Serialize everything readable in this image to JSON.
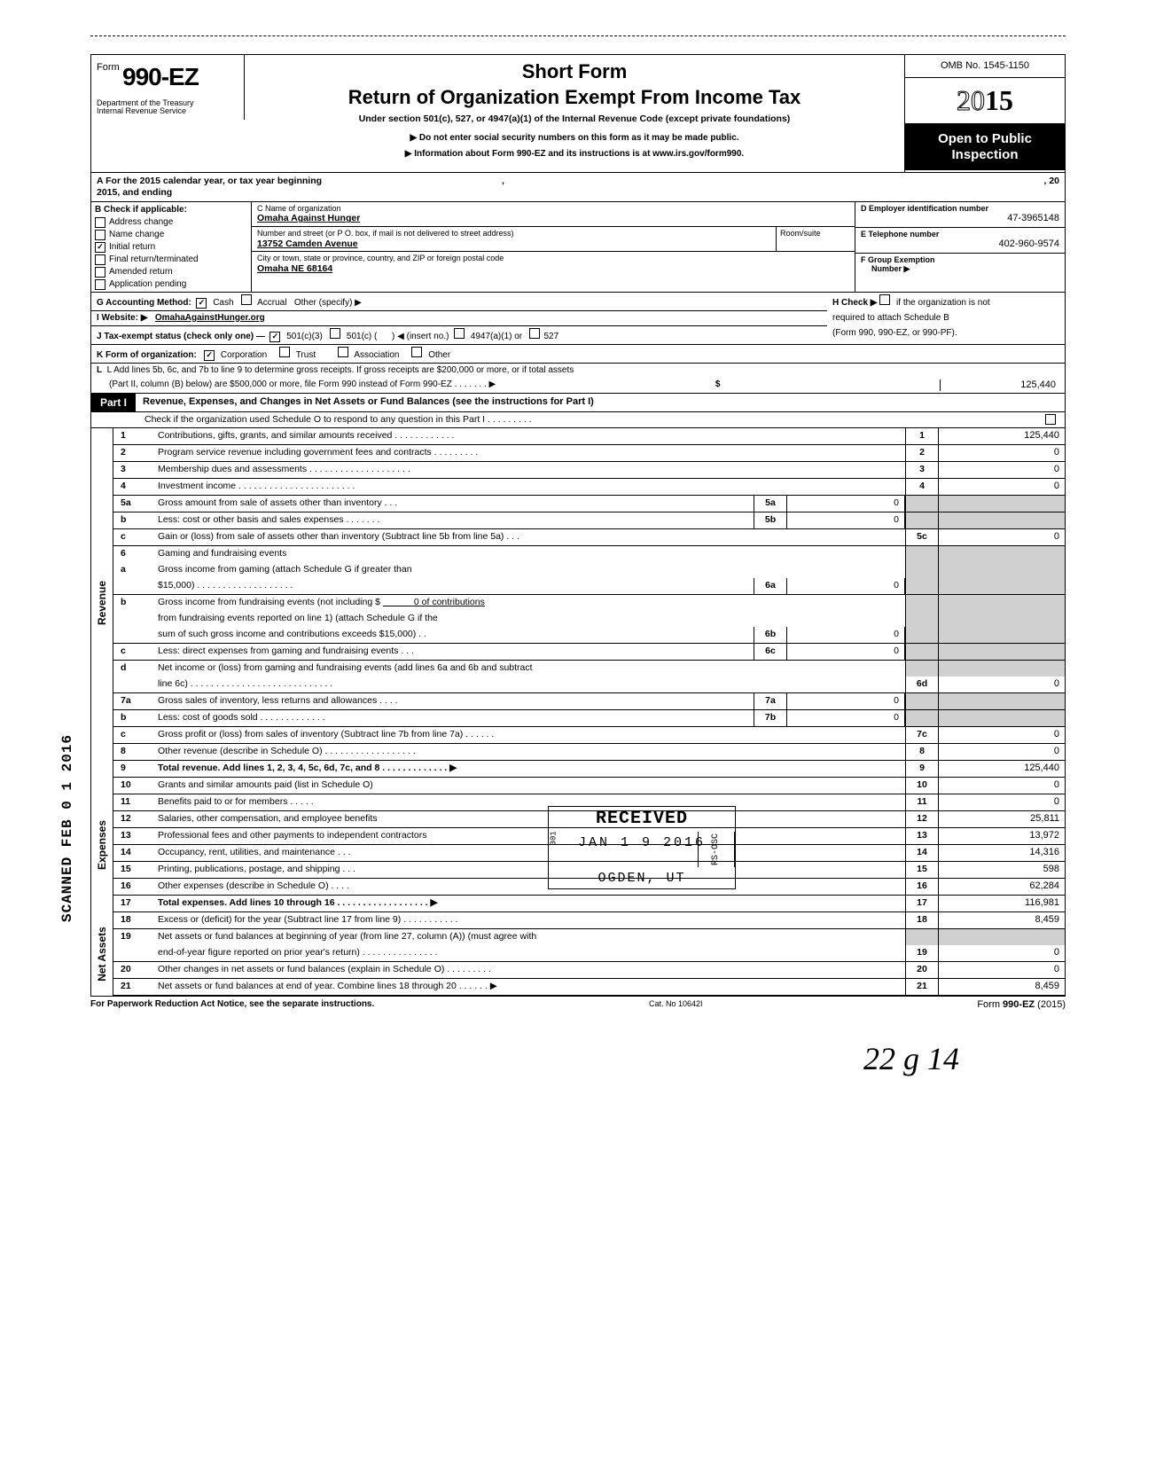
{
  "meta": {
    "form_prefix": "Form",
    "form_number": "990-EZ",
    "omb": "OMB No. 1545-1150",
    "year_outline": "20",
    "year_bold": "15",
    "short_form": "Short Form",
    "title": "Return of Organization Exempt From Income Tax",
    "subtitle": "Under section 501(c), 527, or 4947(a)(1) of the Internal Revenue Code (except private foundations)",
    "notice1": "Do not enter social security numbers on this form as it may be made public.",
    "notice2": "Information about Form 990-EZ and its instructions is at www.irs.gov/form990.",
    "open_public_1": "Open to Public",
    "open_public_2": "Inspection",
    "dept1": "Department of the Treasury",
    "dept2": "Internal Revenue Service",
    "sidebar_stamp": "SCANNED FEB 0 1 2016"
  },
  "row_a": {
    "left": "A  For the 2015 calendar year, or tax year beginning",
    "mid": ", 2015, and ending",
    "right": ", 20"
  },
  "section_b": {
    "heading": "B  Check if applicable:",
    "items": [
      {
        "label": "Address change",
        "checked": false
      },
      {
        "label": "Name change",
        "checked": false
      },
      {
        "label": "Initial return",
        "checked": true
      },
      {
        "label": "Final return/terminated",
        "checked": false
      },
      {
        "label": "Amended return",
        "checked": false
      },
      {
        "label": "Application pending",
        "checked": false
      }
    ]
  },
  "section_c": {
    "name_label": "C  Name of organization",
    "name_value": "Omaha Against Hunger",
    "street_label": "Number and street (or P O. box, if mail is not delivered to street address)",
    "room_label": "Room/suite",
    "street_value": "13752 Camden Avenue",
    "city_label": "City or town, state or province, country, and ZIP or foreign postal code",
    "city_value": "Omaha  NE    68164"
  },
  "section_d": {
    "ein_label": "D Employer identification number",
    "ein_value": "47-3965148",
    "tel_label": "E Telephone number",
    "tel_value": "402-960-9574",
    "group_label": "F Group Exemption",
    "group_label2": "Number ▶"
  },
  "line_g": {
    "label": "G  Accounting Method:",
    "cash": "Cash",
    "cash_checked": true,
    "accrual": "Accrual",
    "other": "Other (specify) ▶"
  },
  "line_h": {
    "text1": "H  Check ▶",
    "text2": "if the organization is not",
    "text3": "required to attach Schedule B",
    "text4": "(Form 990, 990-EZ, or 990-PF)."
  },
  "line_i": {
    "label": "I   Website: ▶",
    "value": "OmahaAgainstHunger.org"
  },
  "line_j": {
    "label": "J  Tax-exempt status (check only one) —",
    "c3": "501(c)(3)",
    "c3_checked": true,
    "c": "501(c) (",
    "insert": ") ◀ (insert no.)",
    "a4947": "4947(a)(1) or",
    "s527": "527"
  },
  "line_k": {
    "label": "K  Form of organization:",
    "corp": "Corporation",
    "corp_checked": true,
    "trust": "Trust",
    "assoc": "Association",
    "other": "Other"
  },
  "line_l": {
    "text1": "L  Add lines 5b, 6c, and 7b to line 9 to determine gross receipts. If gross receipts are $200,000 or more, or if total assets",
    "text2": "(Part II, column (B) below) are $500,000 or more, file Form 990 instead of Form 990-EZ  .    .    .    .    .    .    .    ▶",
    "dollar": "$",
    "value": "125,440"
  },
  "part1": {
    "badge": "Part I",
    "title": "Revenue, Expenses, and Changes in Net Assets or Fund Balances (see the instructions for Part I)",
    "check_line": "Check if the organization used Schedule O to respond to any question in this Part I  .    .    .    .    .    .    .    .    ."
  },
  "sections": {
    "revenue_label": "Revenue",
    "expenses_label": "Expenses",
    "netassets_label": "Net Assets"
  },
  "revenue_lines": [
    {
      "n": "1",
      "d": "Contributions, gifts, grants, and similar amounts received .   .   .   .   .   .   .   .   .   .   .   .",
      "rn": "1",
      "rv": "125,440"
    },
    {
      "n": "2",
      "d": "Program service revenue including government fees and contracts   .   .   .   .   .   .   .   .   .",
      "rn": "2",
      "rv": "0"
    },
    {
      "n": "3",
      "d": "Membership dues and assessments .   .   .   .   .   .   .   .   .   .   .   .   .   .   .   .   .   .   .   .",
      "rn": "3",
      "rv": "0"
    },
    {
      "n": "4",
      "d": "Investment income    .   .   .   .   .   .   .   .   .   .   .   .   .   .   .   .   .   .   .   .   .   .   .",
      "rn": "4",
      "rv": "0"
    }
  ],
  "line5": {
    "a_n": "5a",
    "a_d": "Gross amount from sale of assets other than inventory    .   .   .",
    "a_mb": "5a",
    "a_mv": "0",
    "b_n": "b",
    "b_d": "Less: cost or other basis and sales expenses .   .   .   .   .   .   .",
    "b_mb": "5b",
    "b_mv": "0",
    "c_n": "c",
    "c_d": "Gain or (loss) from sale of assets other than inventory (Subtract line 5b from line 5a)  .   .   .",
    "c_rn": "5c",
    "c_rv": "0"
  },
  "line6": {
    "h_n": "6",
    "h_d": "Gaming and fundraising events",
    "a_n": "a",
    "a_d1": "Gross income from gaming (attach Schedule G if greater than",
    "a_d2": "$15,000) .   .   .   .   .   .   .   .   .   .   .   .   .   .   .   .   .   .   .",
    "a_mb": "6a",
    "a_mv": "0",
    "b_n": "b",
    "b_d1": "Gross income from fundraising events (not including  $",
    "b_d1_tail": "0 of contributions",
    "b_d2": "from fundraising events reported on line 1) (attach Schedule G if the",
    "b_d3": "sum of such gross income and contributions exceeds $15,000)  .   .",
    "b_mb": "6b",
    "b_mv": "0",
    "c_n": "c",
    "c_d": "Less: direct expenses from gaming and fundraising events    .   .   .",
    "c_mb": "6c",
    "c_mv": "0",
    "d_n": "d",
    "d_d1": "Net income or (loss) from gaming and fundraising events (add lines 6a and 6b and subtract",
    "d_d2": "line 6c)    .   .   .   .   .   .   .   .   .   .   .   .   .   .   .   .   .   .   .   .   .   .   .   .   .   .   .   .",
    "d_rn": "6d",
    "d_rv": "0"
  },
  "line7": {
    "a_n": "7a",
    "a_d": "Gross sales of inventory, less returns and allowances  .   .   .   .",
    "a_mb": "7a",
    "a_mv": "0",
    "b_n": "b",
    "b_d": "Less: cost of goods sold     .   .   .   .   .   .   .   .   .   .   .   .   .",
    "b_mb": "7b",
    "b_mv": "0",
    "c_n": "c",
    "c_d": "Gross profit or (loss) from sales of inventory (Subtract line 7b from line 7a)   .   .   .   .   .   .",
    "c_rn": "7c",
    "c_rv": "0"
  },
  "line8": {
    "n": "8",
    "d": "Other revenue (describe in Schedule O) .   .   .   .   .   .   .   .   .   .   .   .   .   .   .   .   .   .",
    "rn": "8",
    "rv": "0"
  },
  "line9": {
    "n": "9",
    "d": "Total revenue. Add lines 1, 2, 3, 4, 5c, 6d, 7c, and 8    .   .   .   .   .   .   .   .   .   .   .   .   . ▶",
    "rn": "9",
    "rv": "125,440",
    "bold": true
  },
  "expenses_lines": [
    {
      "n": "10",
      "d": "Grants and similar amounts paid (list in Schedule O)",
      "rn": "10",
      "rv": "0"
    },
    {
      "n": "11",
      "d": "Benefits paid to or for members   .   .   .   .   .",
      "rn": "11",
      "rv": "0"
    },
    {
      "n": "12",
      "d": "Salaries, other compensation, and employee benefits",
      "rn": "12",
      "rv": "25,811"
    },
    {
      "n": "13",
      "d": "Professional fees and other payments to independent contractors",
      "rn": "13",
      "rv": "13,972"
    },
    {
      "n": "14",
      "d": "Occupancy, rent, utilities, and maintenance    .   .   .",
      "rn": "14",
      "rv": "14,316"
    },
    {
      "n": "15",
      "d": "Printing, publications, postage, and shipping  .   .   .",
      "rn": "15",
      "rv": "598"
    },
    {
      "n": "16",
      "d": "Other expenses (describe in Schedule O)   .   .   .   .",
      "rn": "16",
      "rv": "62,284"
    },
    {
      "n": "17",
      "d": "Total expenses. Add lines 10 through 16  .   .   .   .   .   .   .   .   .   .   .   .   .   .   .   .   .   . ▶",
      "rn": "17",
      "rv": "116,981",
      "bold": true
    }
  ],
  "netassets_lines": [
    {
      "n": "18",
      "d": "Excess or (deficit) for the year (Subtract line 17 from line 9)    .   .   .   .   .   .   .   .   .   .   .",
      "rn": "18",
      "rv": "8,459"
    },
    {
      "n": "19",
      "d": "Net assets or fund balances at beginning of year (from line 27, column (A)) (must agree with",
      "d2": "end-of-year figure reported on prior year's return)    .   .   .   .   .   .   .   .   .   .   .   .   .   .   .",
      "rn": "19",
      "rv": "0"
    },
    {
      "n": "20",
      "d": "Other changes in net assets or fund balances (explain in Schedule O) .   .   .   .   .   .   .   .   .",
      "rn": "20",
      "rv": "0"
    },
    {
      "n": "21",
      "d": "Net assets or fund balances at end of year. Combine lines 18 through 20    .   .   .   .   .   . ▶",
      "rn": "21",
      "rv": "8,459"
    }
  ],
  "stamp": {
    "r1": "RECEIVED",
    "r2": "301",
    "r3": "JAN 1 9 2016",
    "r4": "RS-OSC",
    "r5": "OGDEN, UT"
  },
  "footer": {
    "l": "For Paperwork Reduction Act Notice, see the separate instructions.",
    "c": "Cat. No  10642I",
    "r": "Form 990-EZ (2015)"
  },
  "handwrite": "22  g 14"
}
